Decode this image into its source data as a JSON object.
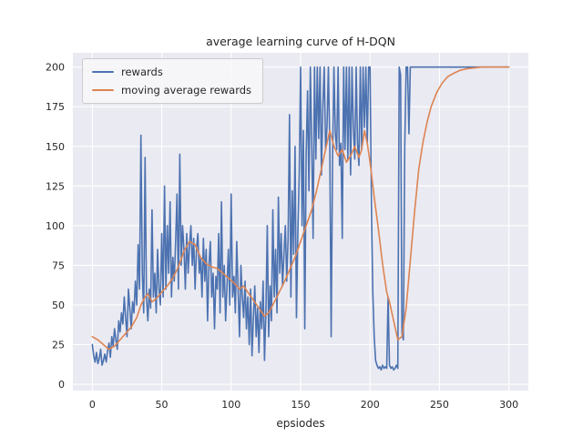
{
  "chart_data": {
    "type": "line",
    "title": "average learning curve of H-DQN",
    "xlabel": "epsiodes",
    "ylabel": "",
    "xlim": [
      -14,
      314
    ],
    "ylim": [
      -4,
      209
    ],
    "x_ticks": [
      0,
      50,
      100,
      150,
      200,
      250,
      300
    ],
    "y_ticks": [
      0,
      25,
      50,
      75,
      100,
      125,
      150,
      175,
      200
    ],
    "grid": true,
    "legend_position": "upper left",
    "colors": {
      "background": "#eaeaf2",
      "grid": "#ffffff",
      "rewards": "#4c72b0",
      "moving_average": "#dd8452",
      "text": "#262626"
    },
    "series": [
      {
        "name": "rewards",
        "color_key": "rewards",
        "x_start": 0,
        "x_step": 1,
        "values": [
          25,
          18,
          14,
          20,
          13,
          16,
          22,
          12,
          15,
          19,
          14,
          21,
          26,
          17,
          30,
          24,
          35,
          28,
          22,
          40,
          33,
          45,
          38,
          55,
          42,
          30,
          60,
          48,
          35,
          52,
          45,
          65,
          50,
          88,
          60,
          157,
          70,
          45,
          143,
          55,
          40,
          60,
          48,
          110,
          55,
          70,
          45,
          85,
          60,
          50,
          95,
          55,
          125,
          60,
          100,
          70,
          115,
          55,
          80,
          65,
          90,
          120,
          60,
          145,
          75,
          100,
          85,
          60,
          95,
          70,
          88,
          100,
          75,
          92,
          60,
          85,
          95,
          70,
          80,
          55,
          92,
          65,
          85,
          40,
          75,
          90,
          55,
          70,
          35,
          68,
          60,
          95,
          45,
          115,
          55,
          75,
          40,
          62,
          85,
          50,
          120,
          55,
          68,
          45,
          90,
          60,
          30,
          75,
          55,
          42,
          65,
          35,
          55,
          25,
          60,
          18,
          42,
          62,
          30,
          48,
          20,
          52,
          35,
          65,
          15,
          45,
          100,
          30,
          62,
          40,
          110,
          55,
          85,
          45,
          118,
          70,
          95,
          62,
          82,
          100,
          65,
          92,
          170,
          55,
          122,
          82,
          150,
          42,
          95,
          132,
          200,
          100,
          160,
          35,
          145,
          185,
          122,
          200,
          152,
          92,
          200,
          142,
          200,
          155,
          200,
          132,
          175,
          200,
          148,
          162,
          200,
          152,
          30,
          142,
          200,
          158,
          148,
          200,
          138,
          152,
          92,
          200,
          148,
          200,
          142,
          200,
          132,
          200,
          162,
          142,
          200,
          152,
          138,
          200,
          148,
          200,
          162,
          200,
          152,
          200,
          200,
          112,
          58,
          30,
          15,
          12,
          10,
          11,
          9,
          12,
          10,
          11,
          10,
          55,
          12,
          10,
          11,
          9,
          10,
          12,
          10,
          200,
          195,
          32,
          28,
          150,
          200,
          200,
          158,
          200,
          200,
          200,
          200,
          200,
          200,
          200,
          200,
          200,
          200,
          200,
          200,
          200,
          200,
          200,
          200,
          200,
          200,
          200,
          200,
          200,
          200,
          200,
          200,
          200,
          200,
          200,
          200,
          200,
          200,
          200,
          200,
          200,
          200,
          200,
          200,
          200,
          200,
          200,
          200,
          200,
          200,
          200,
          200,
          200,
          200,
          200,
          200,
          200,
          200,
          200,
          200,
          200,
          200,
          200,
          200,
          200,
          200,
          200,
          200,
          200,
          200,
          200,
          200,
          200,
          200,
          200,
          200,
          200,
          200,
          200,
          200
        ]
      },
      {
        "name": "moving average rewards",
        "color_key": "moving_average",
        "points": [
          [
            0,
            30
          ],
          [
            4,
            28
          ],
          [
            8,
            25
          ],
          [
            12,
            22
          ],
          [
            16,
            24
          ],
          [
            20,
            28
          ],
          [
            24,
            32
          ],
          [
            28,
            36
          ],
          [
            32,
            42
          ],
          [
            35,
            50
          ],
          [
            38,
            55
          ],
          [
            40,
            57
          ],
          [
            43,
            52
          ],
          [
            46,
            54
          ],
          [
            50,
            58
          ],
          [
            54,
            62
          ],
          [
            58,
            67
          ],
          [
            62,
            74
          ],
          [
            66,
            84
          ],
          [
            70,
            90
          ],
          [
            74,
            88
          ],
          [
            78,
            80
          ],
          [
            82,
            76
          ],
          [
            86,
            74
          ],
          [
            90,
            73
          ],
          [
            94,
            70
          ],
          [
            98,
            67
          ],
          [
            102,
            64
          ],
          [
            106,
            60
          ],
          [
            109,
            62
          ],
          [
            112,
            58
          ],
          [
            116,
            53
          ],
          [
            120,
            48
          ],
          [
            124,
            43
          ],
          [
            127,
            45
          ],
          [
            130,
            50
          ],
          [
            134,
            57
          ],
          [
            138,
            64
          ],
          [
            142,
            72
          ],
          [
            146,
            80
          ],
          [
            150,
            90
          ],
          [
            154,
            100
          ],
          [
            158,
            110
          ],
          [
            162,
            124
          ],
          [
            166,
            140
          ],
          [
            169,
            152
          ],
          [
            171,
            160
          ],
          [
            174,
            150
          ],
          [
            177,
            144
          ],
          [
            180,
            148
          ],
          [
            183,
            140
          ],
          [
            186,
            144
          ],
          [
            189,
            150
          ],
          [
            192,
            143
          ],
          [
            194,
            148
          ],
          [
            196,
            160
          ],
          [
            198,
            152
          ],
          [
            200,
            140
          ],
          [
            203,
            118
          ],
          [
            206,
            98
          ],
          [
            209,
            76
          ],
          [
            212,
            58
          ],
          [
            214,
            52
          ],
          [
            217,
            40
          ],
          [
            220,
            28
          ],
          [
            223,
            30
          ],
          [
            226,
            48
          ],
          [
            229,
            78
          ],
          [
            232,
            108
          ],
          [
            235,
            135
          ],
          [
            238,
            152
          ],
          [
            241,
            165
          ],
          [
            244,
            175
          ],
          [
            248,
            184
          ],
          [
            252,
            190
          ],
          [
            256,
            194
          ],
          [
            260,
            196
          ],
          [
            265,
            198
          ],
          [
            270,
            199
          ],
          [
            280,
            200
          ],
          [
            290,
            200
          ],
          [
            300,
            200
          ]
        ]
      }
    ]
  }
}
